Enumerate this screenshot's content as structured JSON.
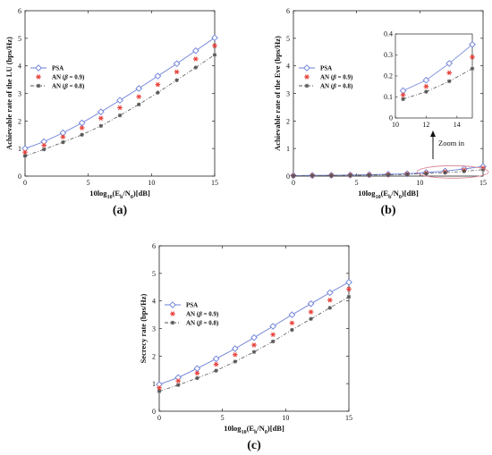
{
  "chart_data": [
    {
      "id": "a",
      "type": "line",
      "caption": "(a)",
      "xlabel": "10log10(Eb/N0)[dB]",
      "ylabel": "Achievable rate of the LU (bps/Hz)",
      "xlim": [
        0,
        15
      ],
      "ylim": [
        0,
        6
      ],
      "xticks": [
        0,
        5,
        10,
        15
      ],
      "yticks": [
        0,
        1,
        2,
        3,
        4,
        5,
        6
      ],
      "grid": false,
      "legend_position": "upper-left",
      "x": [
        0,
        1.5,
        3,
        4.5,
        6,
        7.5,
        9,
        10.5,
        12,
        13.5,
        15
      ],
      "series": [
        {
          "name": "PSA",
          "marker": "diamond",
          "line": "solid",
          "color": "#6b7fd7",
          "values": [
            1.0,
            1.25,
            1.57,
            1.93,
            2.33,
            2.75,
            3.18,
            3.63,
            4.08,
            4.55,
            5.02
          ]
        },
        {
          "name": "AN (β = 0.9)",
          "marker": "star",
          "line": "none",
          "color": "#e8413a",
          "values": [
            0.87,
            1.12,
            1.42,
            1.75,
            2.1,
            2.48,
            2.88,
            3.32,
            3.78,
            4.25,
            4.73
          ]
        },
        {
          "name": "AN (β = 0.8)",
          "marker": "asterisk",
          "line": "dashdot",
          "color": "#555555",
          "values": [
            0.73,
            0.97,
            1.23,
            1.5,
            1.82,
            2.2,
            2.6,
            3.03,
            3.48,
            3.94,
            4.4
          ]
        }
      ]
    },
    {
      "id": "b",
      "type": "line",
      "caption": "(b)",
      "xlabel": "10log10(Eb/N0)[dB]",
      "ylabel": "Achievable rate of the Eve (bps/Hz)",
      "xlim": [
        0,
        15
      ],
      "ylim": [
        0,
        6
      ],
      "xticks": [
        0,
        5,
        10,
        15
      ],
      "yticks": [
        0,
        1,
        2,
        3,
        4,
        5,
        6
      ],
      "grid": false,
      "legend_position": "upper-left",
      "x": [
        0,
        1.5,
        3,
        4.5,
        6,
        7.5,
        9,
        10.5,
        12,
        13.5,
        15
      ],
      "series": [
        {
          "name": "PSA",
          "marker": "diamond",
          "line": "solid",
          "color": "#6b7fd7",
          "values": [
            0.02,
            0.025,
            0.03,
            0.04,
            0.05,
            0.065,
            0.085,
            0.13,
            0.18,
            0.26,
            0.35
          ]
        },
        {
          "name": "AN (β = 0.9)",
          "marker": "star",
          "line": "none",
          "color": "#e8413a",
          "values": [
            0.015,
            0.02,
            0.025,
            0.032,
            0.042,
            0.055,
            0.075,
            0.11,
            0.15,
            0.215,
            0.29
          ]
        },
        {
          "name": "AN (β = 0.8)",
          "marker": "asterisk",
          "line": "dashdot",
          "color": "#555555",
          "values": [
            0.01,
            0.015,
            0.02,
            0.027,
            0.035,
            0.045,
            0.062,
            0.09,
            0.125,
            0.175,
            0.235
          ]
        }
      ],
      "annotation": "Zoom in",
      "inset": {
        "xlim": [
          10,
          15
        ],
        "ylim": [
          0,
          0.4
        ],
        "xticks": [
          10,
          12,
          14
        ],
        "yticks": [
          0,
          0.1,
          0.2,
          0.3,
          0.4
        ],
        "ytick_labels": [
          "0",
          "0.1",
          "0.2",
          "0.3",
          "0.4"
        ]
      }
    },
    {
      "id": "c",
      "type": "line",
      "caption": "(c)",
      "xlabel": "10log10(Eb/N0)[dB]",
      "ylabel": "Secrecy rate (bps/Hz)",
      "xlim": [
        0,
        15
      ],
      "ylim": [
        0,
        6
      ],
      "xticks": [
        0,
        5,
        10,
        15
      ],
      "yticks": [
        0,
        1,
        2,
        3,
        4,
        5,
        6
      ],
      "grid": false,
      "legend_position": "upper-left",
      "x": [
        0,
        1.5,
        3,
        4.5,
        6,
        7.5,
        9,
        10.5,
        12,
        13.5,
        15
      ],
      "series": [
        {
          "name": "PSA",
          "marker": "diamond",
          "line": "solid",
          "color": "#6b7fd7",
          "values": [
            0.97,
            1.22,
            1.55,
            1.9,
            2.27,
            2.67,
            3.08,
            3.5,
            3.9,
            4.3,
            4.68
          ]
        },
        {
          "name": "AN (β = 0.9)",
          "marker": "star",
          "line": "none",
          "color": "#e8413a",
          "values": [
            0.85,
            1.1,
            1.38,
            1.7,
            2.05,
            2.4,
            2.78,
            3.2,
            3.6,
            4.03,
            4.43
          ]
        },
        {
          "name": "AN (β = 0.8)",
          "marker": "asterisk",
          "line": "dashdot",
          "color": "#555555",
          "values": [
            0.72,
            0.95,
            1.2,
            1.47,
            1.8,
            2.15,
            2.53,
            2.95,
            3.35,
            3.75,
            4.15
          ]
        }
      ]
    }
  ]
}
